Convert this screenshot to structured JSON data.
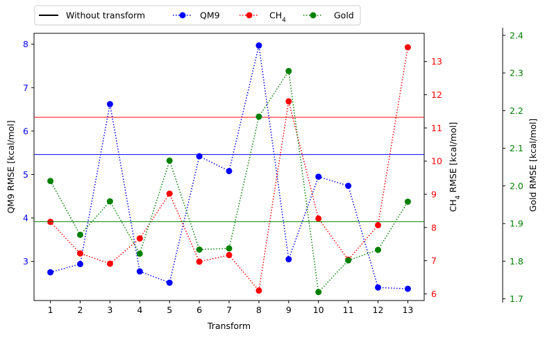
{
  "chart_data": {
    "type": "line",
    "xlabel": "Transform",
    "x": [
      1,
      2,
      3,
      4,
      5,
      6,
      7,
      8,
      9,
      10,
      11,
      12,
      13
    ],
    "xlim": [
      0.45,
      13.55
    ],
    "legend": {
      "placement": "top-left, above plot",
      "entries": [
        {
          "key": "baseline",
          "label": "Without transform",
          "color": "#000000",
          "style": "solid",
          "marker": false
        },
        {
          "key": "qm9",
          "label": "QM9",
          "color": "#0000ff",
          "style": "dotted",
          "marker": true
        },
        {
          "key": "ch4",
          "label": "CH",
          "sub": "4",
          "color": "#ff0000",
          "style": "dotted",
          "marker": true
        },
        {
          "key": "gold",
          "label": "Gold",
          "color": "#008000",
          "style": "dotted",
          "marker": true
        }
      ]
    },
    "axes": {
      "qm9": {
        "label": "QM9 RMSE [kcal/mol]",
        "ylim": [
          2.1,
          8.25
        ],
        "ticks": [
          3,
          4,
          5,
          6,
          7,
          8
        ],
        "color": "#0000ff"
      },
      "ch4": {
        "label_main": "CH",
        "label_sub": "4",
        "label_rest": " RMSE [kcal/mol]",
        "ylim": [
          5.8,
          13.85
        ],
        "ticks": [
          6,
          7,
          8,
          9,
          10,
          11,
          12,
          13
        ],
        "color": "#ff0000"
      },
      "gold": {
        "label": "Gold RMSE [kcal/mol]",
        "ylim": [
          1.69,
          2.42
        ],
        "ticks": [
          1.7,
          1.8,
          1.9,
          2.0,
          2.1,
          2.2,
          2.3,
          2.4
        ],
        "color": "#008000"
      }
    },
    "series": [
      {
        "name": "QM9",
        "axis": "qm9",
        "color": "#0000ff",
        "baseline": 5.46,
        "values": [
          2.75,
          2.94,
          6.62,
          2.77,
          2.51,
          5.42,
          5.08,
          7.97,
          3.05,
          4.95,
          4.74,
          2.4,
          2.37
        ]
      },
      {
        "name": "CH4",
        "axis": "ch4",
        "color": "#ff0000",
        "baseline": 11.32,
        "values": [
          8.17,
          7.22,
          6.91,
          7.67,
          9.02,
          6.97,
          7.17,
          6.1,
          11.8,
          8.27,
          7.03,
          8.07,
          13.43
        ]
      },
      {
        "name": "Gold",
        "axis": "gold",
        "color": "#008000",
        "baseline": 1.905,
        "values": [
          2.013,
          1.87,
          1.959,
          1.82,
          2.067,
          1.831,
          1.834,
          2.184,
          2.305,
          1.718,
          1.802,
          1.83,
          1.958
        ]
      }
    ]
  }
}
